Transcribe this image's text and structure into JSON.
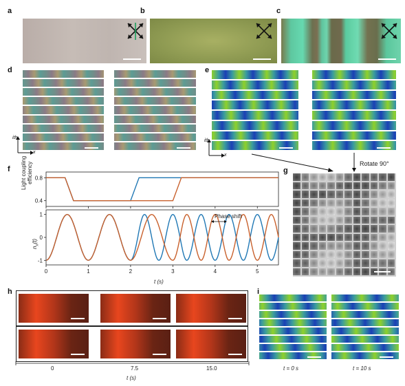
{
  "panels": {
    "a": "a",
    "b": "b",
    "c": "c",
    "d": "d",
    "e": "e",
    "f": "f",
    "g": "g",
    "h": "h",
    "i": "i"
  },
  "axis_labels": {
    "ith": "ith",
    "x": "x"
  },
  "annotations": {
    "rotate": "Rotate 90°",
    "phase_shift": "Phase shift"
  },
  "panel_f": {
    "top_ylabel_line1": "Light coupling",
    "top_ylabel_line2": "efficiency",
    "top_ticks": [
      "0.8",
      "0.4"
    ],
    "bottom_ylabel": "n",
    "bottom_ylabel_sub": "x",
    "bottom_ylabel_suffix": "(t)",
    "bottom_ticks": [
      "1",
      "0",
      "-1"
    ],
    "x_ticks": [
      "0",
      "1",
      "2",
      "3",
      "4",
      "5"
    ],
    "xlabel": "t (s)"
  },
  "panel_h": {
    "x_ticks": [
      "0",
      "7.5",
      "15.0"
    ],
    "xlabel": "t (s)"
  },
  "panel_i": {
    "caption_left": "t = 0 s",
    "caption_right": "t = 10 s"
  },
  "chart_data": {
    "type": "line",
    "xlabel": "t (s)",
    "xlim": [
      0,
      5.5
    ],
    "subplots": [
      {
        "ylabel": "Light coupling efficiency",
        "ylim": [
          0.3,
          0.9
        ],
        "series": [
          {
            "color": "#1f77b4",
            "x": [
              0,
              0.45,
              0.65,
              2.0,
              2.2,
              5.5
            ],
            "values": [
              0.8,
              0.8,
              0.4,
              0.4,
              0.8,
              0.8
            ]
          },
          {
            "color": "#c8602c",
            "x": [
              0,
              0.45,
              0.65,
              3.0,
              3.2,
              5.5
            ],
            "values": [
              0.8,
              0.8,
              0.4,
              0.4,
              0.8,
              0.8
            ]
          }
        ]
      },
      {
        "ylabel": "nx(t)",
        "ylim": [
          -1.2,
          1.2
        ],
        "series": [
          {
            "color": "#1f77b4",
            "x": [
              0,
              0.25,
              0.5,
              0.75,
              1.0,
              1.25,
              1.5,
              1.75,
              2.0,
              2.17,
              2.33,
              2.5,
              2.67,
              2.83,
              3.0,
              3.17,
              3.33,
              3.5,
              3.67,
              3.83,
              4.0,
              4.17,
              4.33,
              4.5,
              4.67,
              4.83,
              5.0,
              5.17,
              5.33,
              5.5
            ],
            "values": [
              -1,
              0,
              1,
              0,
              -1,
              0,
              1,
              0,
              -1,
              0,
              1,
              0,
              -1,
              0,
              1,
              0,
              -1,
              0,
              1,
              0,
              -1,
              0,
              1,
              0,
              -1,
              0,
              1,
              0,
              -1,
              0
            ]
          },
          {
            "color": "#c8602c",
            "x": [
              0,
              0.25,
              0.5,
              0.75,
              1.0,
              1.25,
              1.5,
              1.75,
              2.0,
              2.25,
              2.5,
              2.75,
              3.0,
              3.17,
              3.33,
              3.5,
              3.67,
              3.83,
              4.0,
              4.17,
              4.33,
              4.5,
              4.67,
              4.83,
              5.0,
              5.17,
              5.33,
              5.5
            ],
            "values": [
              -1,
              0,
              1,
              0,
              -1,
              0,
              1,
              0,
              -1,
              0,
              1,
              0,
              -1,
              0,
              1,
              0,
              -1,
              0,
              1,
              0,
              -1,
              0,
              1,
              0,
              -1,
              0,
              1,
              0
            ]
          }
        ]
      }
    ]
  },
  "colors": {
    "blue_curve": "#1f77b4",
    "orange_curve": "#c8602c",
    "stripe_green": "#8fd12a",
    "stripe_blue": "#1a3fb5",
    "stripe_teal": "#3a9c9e",
    "hflow_red": "#e8461e"
  }
}
